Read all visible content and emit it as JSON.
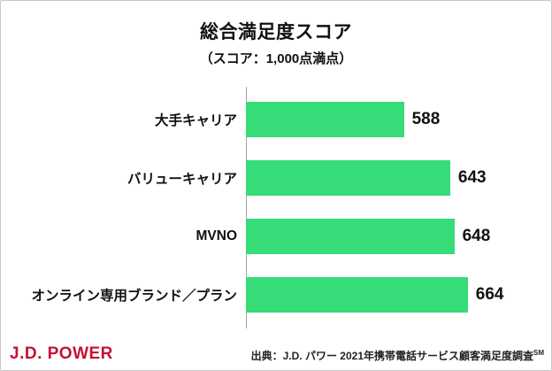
{
  "chart_data": {
    "type": "bar",
    "orientation": "horizontal",
    "title": "総合満足度スコア",
    "subtitle": "（スコア：1,000点満点）",
    "categories": [
      "大手キャリア",
      "バリューキャリア",
      "MVNO",
      "オンライン専用ブランド／プラン"
    ],
    "values": [
      588,
      643,
      648,
      664
    ],
    "xlim": [
      400,
      700
    ],
    "bar_color": "#35dc78",
    "axis_line_color": "#a6a6a6",
    "grid": false,
    "value_labels": true,
    "legend": "none"
  },
  "footer": {
    "logo": "J.D. POWER",
    "logo_color": "#c41230",
    "source_text": "出典：J.D. パワー 2021年携帯電話サービス顧客満足度調査",
    "source_superscript": "SM"
  }
}
